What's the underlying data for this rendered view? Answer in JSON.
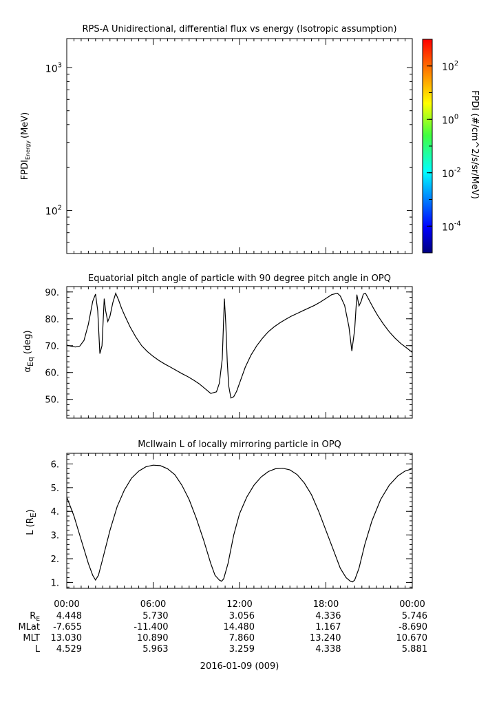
{
  "chart_data": [
    {
      "type": "heatmap",
      "title": "RPS-A Unidirectional, differential flux vs energy (Isotropic assumption)",
      "ylabel_main": "FPDI",
      "ylabel_sub": "Energy",
      "ylabel_unit": "(MeV)",
      "yscale": "log",
      "ylim": [
        50,
        1600
      ],
      "yticks": [
        {
          "value": 1000,
          "base": "10",
          "exp": "3"
        },
        {
          "value": 100,
          "base": "10",
          "exp": "2"
        }
      ],
      "values": [],
      "colorbar": {
        "label": "FPDI (#/cm^2/s/sr/MeV)",
        "scale": "log",
        "range_exp": [
          -5,
          3
        ],
        "ticks": [
          {
            "exp": 2,
            "base": "10",
            "sup": "2"
          },
          {
            "exp": 0,
            "base": "10",
            "sup": "0"
          },
          {
            "exp": -2,
            "base": "10",
            "sup": "-2"
          },
          {
            "exp": -4,
            "base": "10",
            "sup": "-4"
          }
        ],
        "colors": [
          "#00007f",
          "#0000ff",
          "#007fff",
          "#00ffff",
          "#7fff7f",
          "#ffff00",
          "#ff7f00",
          "#ff0000"
        ]
      }
    },
    {
      "type": "line",
      "title": "Equatorial pitch angle of particle with 90 degree pitch angle in OPQ",
      "ylabel_main": "α",
      "ylabel_sub": "Eq",
      "ylabel_unit": "(deg)",
      "ylim": [
        43,
        92
      ],
      "yticks": [
        {
          "value": 90,
          "label": "90."
        },
        {
          "value": 80,
          "label": "80."
        },
        {
          "value": 70,
          "label": "70."
        },
        {
          "value": 60,
          "label": "60."
        },
        {
          "value": 50,
          "label": "50."
        }
      ],
      "series": [
        {
          "name": "alpha_eq",
          "x_hours": [
            0,
            0.3,
            0.6,
            0.9,
            1.2,
            1.5,
            1.8,
            2.0,
            2.15,
            2.3,
            2.45,
            2.6,
            2.7,
            2.85,
            3.0,
            3.2,
            3.4,
            3.6,
            3.8,
            4.0,
            4.4,
            4.8,
            5.2,
            5.6,
            6.0,
            6.4,
            6.8,
            7.2,
            7.6,
            8.0,
            8.4,
            8.8,
            9.2,
            9.6,
            10.0,
            10.4,
            10.6,
            10.8,
            10.95,
            11.05,
            11.15,
            11.25,
            11.4,
            11.6,
            11.8,
            12.0,
            12.2,
            12.4,
            12.8,
            13.2,
            13.6,
            14.0,
            14.4,
            14.8,
            15.2,
            15.6,
            16.0,
            16.4,
            16.8,
            17.2,
            17.6,
            18.0,
            18.4,
            18.8,
            19.0,
            19.3,
            19.6,
            19.8,
            20.0,
            20.15,
            20.3,
            20.45,
            20.6,
            20.75,
            20.9,
            21.1,
            21.3,
            21.6,
            22.0,
            22.4,
            22.8,
            23.2,
            23.6,
            24.0
          ],
          "values": [
            70.2,
            69.8,
            69.5,
            69.8,
            72.0,
            78.0,
            86.5,
            89.2,
            83.0,
            67.0,
            70.0,
            87.5,
            83.0,
            79.0,
            81.0,
            86.0,
            89.5,
            87.0,
            84.0,
            81.5,
            77.0,
            73.2,
            70.0,
            67.8,
            66.0,
            64.5,
            63.2,
            62.0,
            60.8,
            59.6,
            58.5,
            57.2,
            55.8,
            54.0,
            52.2,
            52.8,
            56.0,
            65.0,
            87.5,
            78.0,
            64.0,
            55.0,
            50.5,
            51.0,
            53.0,
            56.0,
            59.0,
            62.0,
            66.5,
            70.0,
            72.8,
            75.2,
            77.0,
            78.5,
            79.8,
            81.0,
            82.0,
            83.0,
            84.0,
            85.0,
            86.2,
            87.6,
            89.0,
            89.5,
            88.5,
            85.0,
            77.0,
            68.0,
            76.0,
            89.0,
            84.8,
            86.5,
            89.2,
            89.5,
            88.0,
            86.0,
            84.0,
            81.2,
            78.0,
            75.2,
            72.8,
            70.8,
            69.2,
            67.5
          ]
        }
      ]
    },
    {
      "type": "line",
      "title": "McIlwain L of locally mirroring particle in OPQ",
      "ylabel_main": "L (R",
      "ylabel_sub": "E",
      "ylabel_unit": ")",
      "ylim": [
        0.75,
        6.45
      ],
      "yticks": [
        {
          "value": 6,
          "label": "6."
        },
        {
          "value": 5,
          "label": "5."
        },
        {
          "value": 4,
          "label": "4."
        },
        {
          "value": 3,
          "label": "3."
        },
        {
          "value": 2,
          "label": "2."
        },
        {
          "value": 1,
          "label": "1."
        }
      ],
      "series": [
        {
          "name": "L",
          "x_hours": [
            0,
            0.5,
            1.0,
            1.5,
            1.8,
            2.0,
            2.2,
            2.5,
            3.0,
            3.5,
            4.0,
            4.5,
            5.0,
            5.5,
            6.0,
            6.5,
            7.0,
            7.5,
            8.0,
            8.5,
            9.0,
            9.5,
            10.0,
            10.3,
            10.6,
            10.75,
            10.9,
            11.2,
            11.6,
            12.0,
            12.5,
            13.0,
            13.5,
            14.0,
            14.5,
            15.0,
            15.5,
            16.0,
            16.5,
            17.0,
            17.5,
            18.0,
            18.5,
            19.0,
            19.4,
            19.7,
            19.85,
            20.0,
            20.3,
            20.7,
            21.2,
            21.8,
            22.4,
            23.0,
            23.5,
            24.0
          ],
          "values": [
            4.6,
            3.8,
            2.8,
            1.8,
            1.3,
            1.1,
            1.3,
            2.0,
            3.2,
            4.2,
            4.9,
            5.4,
            5.7,
            5.88,
            5.95,
            5.93,
            5.8,
            5.55,
            5.1,
            4.5,
            3.7,
            2.8,
            1.8,
            1.3,
            1.1,
            1.05,
            1.15,
            1.8,
            3.0,
            3.9,
            4.6,
            5.1,
            5.45,
            5.68,
            5.8,
            5.82,
            5.75,
            5.55,
            5.2,
            4.7,
            4.0,
            3.2,
            2.4,
            1.6,
            1.2,
            1.05,
            1.02,
            1.1,
            1.6,
            2.6,
            3.6,
            4.5,
            5.1,
            5.5,
            5.7,
            5.8
          ]
        }
      ]
    }
  ],
  "time_axis": {
    "date_label": "2016-01-09 (009)",
    "ticks": [
      {
        "hour": 0,
        "label": "00:00"
      },
      {
        "hour": 6,
        "label": "06:00"
      },
      {
        "hour": 12,
        "label": "12:00"
      },
      {
        "hour": 18,
        "label": "18:00"
      },
      {
        "hour": 24,
        "label": "00:00"
      }
    ],
    "ephemeris": {
      "rows": [
        {
          "label": "R",
          "label_sub": "E",
          "values": [
            "4.448",
            "5.730",
            "3.056",
            "4.336",
            "5.746"
          ]
        },
        {
          "label": "MLat",
          "label_sub": "",
          "values": [
            "-7.655",
            "-11.400",
            "14.480",
            "1.167",
            "-8.690"
          ]
        },
        {
          "label": "MLT",
          "label_sub": "",
          "values": [
            "13.030",
            "10.890",
            "7.860",
            "13.240",
            "10.670"
          ]
        },
        {
          "label": "L",
          "label_sub": "",
          "values": [
            "4.529",
            "5.963",
            "3.259",
            "4.338",
            "5.881"
          ]
        }
      ]
    }
  }
}
